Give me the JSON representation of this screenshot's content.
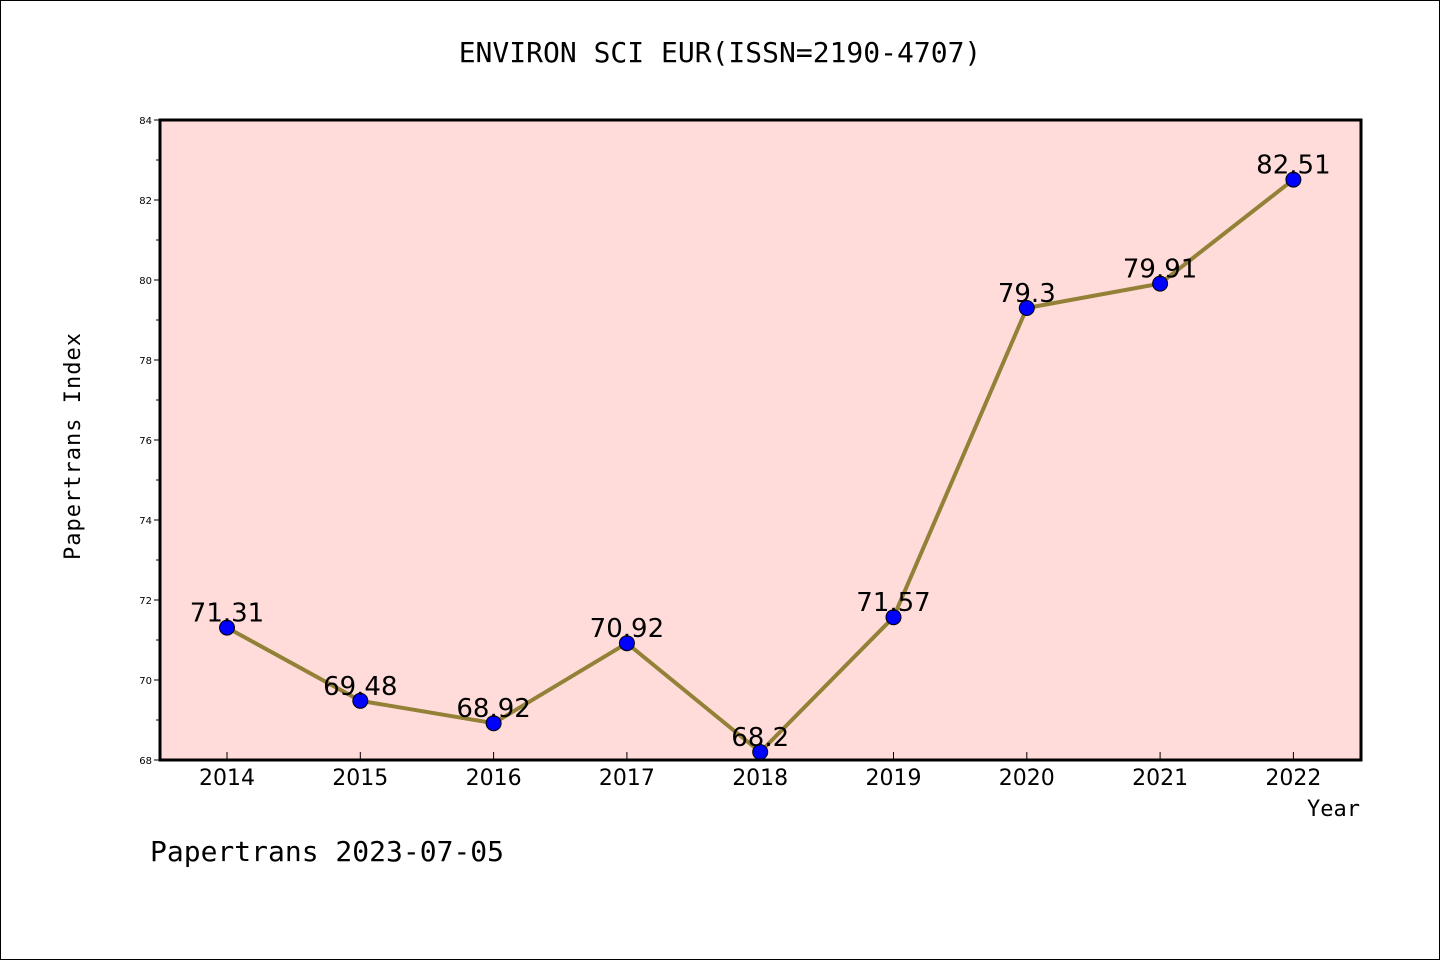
{
  "chart_data": {
    "type": "line",
    "title": "ENVIRON SCI EUR(ISSN=2190-4707)",
    "xlabel": "Year",
    "ylabel": "Papertrans Index",
    "categories": [
      "2014",
      "2015",
      "2016",
      "2017",
      "2018",
      "2019",
      "2020",
      "2021",
      "2022"
    ],
    "series": [
      {
        "values": [
          71.31,
          69.48,
          68.92,
          70.92,
          68.2,
          71.57,
          79.3,
          79.91,
          82.51
        ],
        "labels": [
          "71.31",
          "69.48",
          "68.92",
          "70.92",
          "68.2",
          "71.57",
          "79.3",
          "79.91",
          "82.51"
        ]
      }
    ],
    "ylim": [
      68,
      84
    ],
    "yticks": [
      68,
      70,
      72,
      74,
      76,
      78,
      80,
      82,
      84
    ],
    "grid": false,
    "colors": {
      "plot_background": "#ffdcda",
      "line": "#938138",
      "marker": "#0000ff"
    }
  },
  "footer": "Papertrans 2023-07-05"
}
